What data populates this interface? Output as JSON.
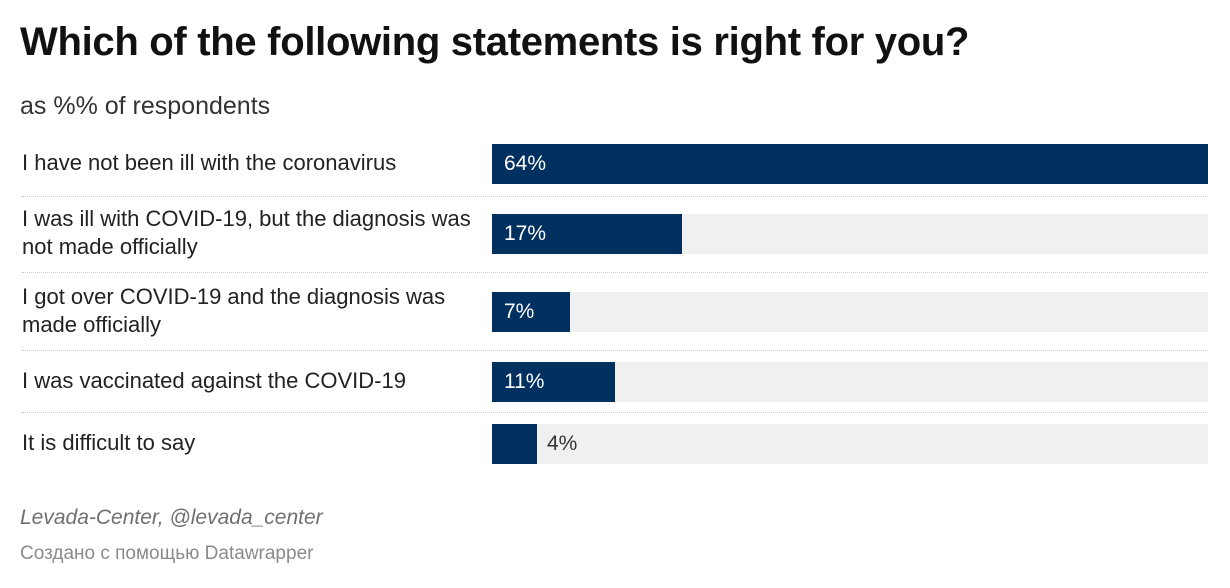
{
  "title": "Which of the following statements is right for you?",
  "subtitle": "as %% of respondents",
  "colors": {
    "bar": "#00305f",
    "track": "#f0f0f0"
  },
  "chart_data": {
    "type": "bar",
    "orientation": "horizontal",
    "title": "Which of the following statements is right for you?",
    "subtitle": "as %% of respondents",
    "categories": [
      "I have not been ill with the coronavirus",
      "I was ill with COVID-19, but the diagnosis was not made officially",
      "I got over COVID-19 and the diagnosis was made officially",
      "I was vaccinated against the COVID-19",
      "It is difficult to say"
    ],
    "values": [
      64,
      17,
      7,
      11,
      4
    ],
    "value_labels": [
      "64%",
      "17%",
      "7%",
      "11%",
      "4%"
    ],
    "xlim": [
      0,
      64
    ],
    "unit": "%",
    "grid": false,
    "legend": "none"
  },
  "footer": {
    "source": "Levada-Center, @levada_center",
    "credit": "Создано с помощью Datawrapper"
  }
}
